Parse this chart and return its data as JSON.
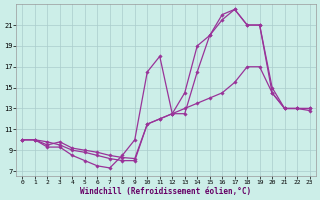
{
  "xlabel": "Windchill (Refroidissement éolien,°C)",
  "xlim": [
    -0.5,
    23.5
  ],
  "ylim": [
    6.5,
    23.0
  ],
  "yticks": [
    7,
    9,
    11,
    13,
    15,
    17,
    19,
    21
  ],
  "xticks": [
    0,
    1,
    2,
    3,
    4,
    5,
    6,
    7,
    8,
    9,
    10,
    11,
    12,
    13,
    14,
    15,
    16,
    17,
    18,
    19,
    20,
    21,
    22,
    23
  ],
  "bg_color": "#cceee8",
  "grid_color": "#aacccc",
  "line_color": "#993399",
  "curve1_x": [
    0,
    1,
    2,
    3,
    4,
    5,
    6,
    7,
    8,
    9,
    10,
    11,
    12,
    13,
    14,
    15,
    16,
    17,
    18,
    19,
    20,
    21,
    22,
    23
  ],
  "curve1_y": [
    10.0,
    10.0,
    9.3,
    9.3,
    8.5,
    8.0,
    7.5,
    7.3,
    8.5,
    10.0,
    16.5,
    18.0,
    12.5,
    12.5,
    16.5,
    20.0,
    21.5,
    22.5,
    21.0,
    21.0,
    15.0,
    13.0,
    13.0,
    13.0
  ],
  "curve2_x": [
    0,
    1,
    2,
    3,
    4,
    5,
    6,
    7,
    8,
    9,
    10,
    11,
    12,
    13,
    14,
    15,
    16,
    17,
    18,
    19,
    20,
    21,
    22,
    23
  ],
  "curve2_y": [
    10.0,
    10.0,
    9.8,
    9.5,
    9.0,
    8.8,
    8.5,
    8.2,
    8.0,
    8.0,
    11.5,
    12.0,
    12.5,
    13.0,
    13.5,
    14.0,
    14.5,
    15.5,
    17.0,
    17.0,
    14.5,
    13.0,
    13.0,
    13.0
  ],
  "curve3_x": [
    0,
    1,
    2,
    3,
    4,
    5,
    6,
    7,
    8,
    9,
    10,
    11,
    12,
    13,
    14,
    15,
    16,
    17,
    18,
    19,
    20,
    21,
    22,
    23
  ],
  "curve3_y": [
    10.0,
    10.0,
    9.5,
    9.8,
    9.2,
    9.0,
    8.8,
    8.5,
    8.3,
    8.2,
    11.5,
    12.0,
    12.5,
    14.5,
    19.0,
    20.0,
    22.0,
    22.5,
    21.0,
    21.0,
    14.5,
    13.0,
    13.0,
    12.8
  ]
}
